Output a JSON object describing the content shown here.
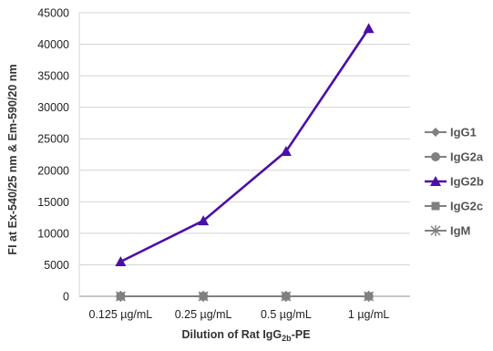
{
  "chart_data": {
    "type": "line",
    "categories": [
      "0.125 µg/mL",
      "0.25 µg/mL",
      "0.5 µg/mL",
      "1 µg/mL"
    ],
    "ylabel": "FI at Ex-540/25 nm & Em-590/20 nm",
    "xlabel_main": "Dilution of Rat IgG",
    "xlabel_sub": "2b",
    "xlabel_suffix": "-PE",
    "ylim": [
      0,
      45000
    ],
    "yticks": [
      0,
      5000,
      10000,
      15000,
      20000,
      25000,
      30000,
      35000,
      40000,
      45000
    ],
    "grid": true,
    "legend_position": "right",
    "series": [
      {
        "name": "IgG1",
        "values": [
          0,
          0,
          0,
          0
        ],
        "color": "#808080",
        "marker": "diamond"
      },
      {
        "name": "IgG2a",
        "values": [
          0,
          0,
          0,
          0
        ],
        "color": "#808080",
        "marker": "circle"
      },
      {
        "name": "IgG2b",
        "values": [
          5500,
          12000,
          23000,
          42500
        ],
        "color": "#4B0FA8",
        "marker": "triangle"
      },
      {
        "name": "IgG2c",
        "values": [
          0,
          0,
          0,
          0
        ],
        "color": "#808080",
        "marker": "square"
      },
      {
        "name": "IgM",
        "values": [
          0,
          0,
          0,
          0
        ],
        "color": "#808080",
        "marker": "star"
      }
    ]
  }
}
